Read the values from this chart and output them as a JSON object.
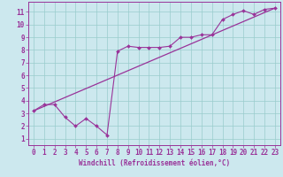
{
  "xlabel": "Windchill (Refroidissement éolien,°C)",
  "xlim": [
    -0.5,
    23.5
  ],
  "ylim": [
    0.5,
    11.8
  ],
  "xticks": [
    0,
    1,
    2,
    3,
    4,
    5,
    6,
    7,
    8,
    9,
    10,
    11,
    12,
    13,
    14,
    15,
    16,
    17,
    18,
    19,
    20,
    21,
    22,
    23
  ],
  "yticks": [
    1,
    2,
    3,
    4,
    5,
    6,
    7,
    8,
    9,
    10,
    11
  ],
  "bg_color": "#cce8ee",
  "line_color": "#993399",
  "grid_color": "#99cccc",
  "ref_line": [
    [
      0,
      3.2
    ],
    [
      23,
      11.3
    ]
  ],
  "data_line": [
    [
      0,
      3.2
    ],
    [
      1,
      3.7
    ],
    [
      2,
      3.7
    ],
    [
      3,
      2.7
    ],
    [
      4,
      2.0
    ],
    [
      5,
      2.6
    ],
    [
      6,
      2.0
    ],
    [
      7,
      1.3
    ],
    [
      8,
      7.9
    ],
    [
      9,
      8.3
    ],
    [
      10,
      8.2
    ],
    [
      11,
      8.2
    ],
    [
      12,
      8.2
    ],
    [
      13,
      8.3
    ],
    [
      14,
      9.0
    ],
    [
      15,
      9.0
    ],
    [
      16,
      9.2
    ],
    [
      17,
      9.2
    ],
    [
      18,
      10.4
    ],
    [
      19,
      10.8
    ],
    [
      20,
      11.1
    ],
    [
      21,
      10.8
    ],
    [
      22,
      11.2
    ],
    [
      23,
      11.3
    ]
  ],
  "tick_fontsize": 5.5,
  "xlabel_fontsize": 5.5
}
